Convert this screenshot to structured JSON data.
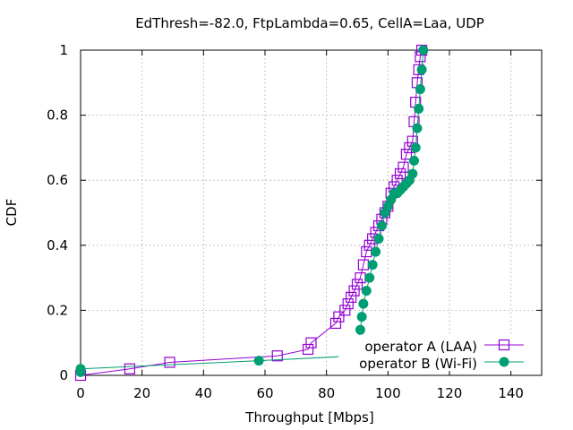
{
  "chart_data": {
    "type": "line",
    "title": "EdThresh=-82.0, FtpLambda=0.65, CellA=Laa, UDP",
    "xlabel": "Throughput [Mbps]",
    "ylabel": "CDF",
    "xlim": [
      0,
      150
    ],
    "ylim": [
      0,
      1
    ],
    "xticks": [
      0,
      20,
      40,
      60,
      80,
      100,
      120,
      140
    ],
    "yticks": [
      0,
      0.2,
      0.4,
      0.6,
      0.8,
      1
    ],
    "xtick_labels": [
      "0",
      "20",
      "40",
      "60",
      "80",
      "100",
      "120",
      "140"
    ],
    "ytick_labels": [
      "0",
      "0.2",
      "0.4",
      "0.6",
      "0.8",
      "1"
    ],
    "grid": true,
    "legend_position": "bottom-right",
    "series": [
      {
        "name": "operator A (LAA)",
        "color": "#9400d3",
        "marker": "open-square",
        "x": [
          0,
          16,
          29,
          64,
          74,
          75,
          83,
          84,
          86,
          87,
          88,
          89,
          90,
          91,
          92,
          93,
          94,
          95,
          96,
          97,
          98,
          99,
          100,
          101,
          102,
          103,
          104,
          105,
          106,
          107,
          108,
          108.5,
          109,
          109.5,
          110,
          110.5,
          111
        ],
        "y": [
          0,
          0.02,
          0.04,
          0.06,
          0.08,
          0.1,
          0.16,
          0.18,
          0.2,
          0.22,
          0.24,
          0.26,
          0.28,
          0.3,
          0.34,
          0.38,
          0.4,
          0.42,
          0.44,
          0.46,
          0.48,
          0.5,
          0.52,
          0.56,
          0.58,
          0.6,
          0.62,
          0.64,
          0.68,
          0.7,
          0.72,
          0.78,
          0.84,
          0.9,
          0.94,
          0.98,
          1.0
        ]
      },
      {
        "name": "operator B (Wi-Fi)",
        "color": "#009e73",
        "marker": "filled-circle",
        "x": [
          0,
          0,
          58,
          90,
          90.5,
          91,
          91.5,
          92,
          93,
          94,
          95,
          96,
          97,
          98,
          99,
          100,
          101,
          102,
          103,
          104,
          105,
          106,
          107,
          108,
          108.5,
          109,
          109.5,
          110,
          110.5,
          111,
          111.5
        ],
        "y": [
          0.01,
          0.02,
          0.045,
          0.06,
          0.1,
          0.14,
          0.18,
          0.22,
          0.26,
          0.3,
          0.34,
          0.38,
          0.42,
          0.46,
          0.5,
          0.52,
          0.54,
          0.56,
          0.56,
          0.57,
          0.58,
          0.59,
          0.6,
          0.62,
          0.66,
          0.7,
          0.76,
          0.82,
          0.88,
          0.94,
          1.0
        ]
      }
    ]
  }
}
